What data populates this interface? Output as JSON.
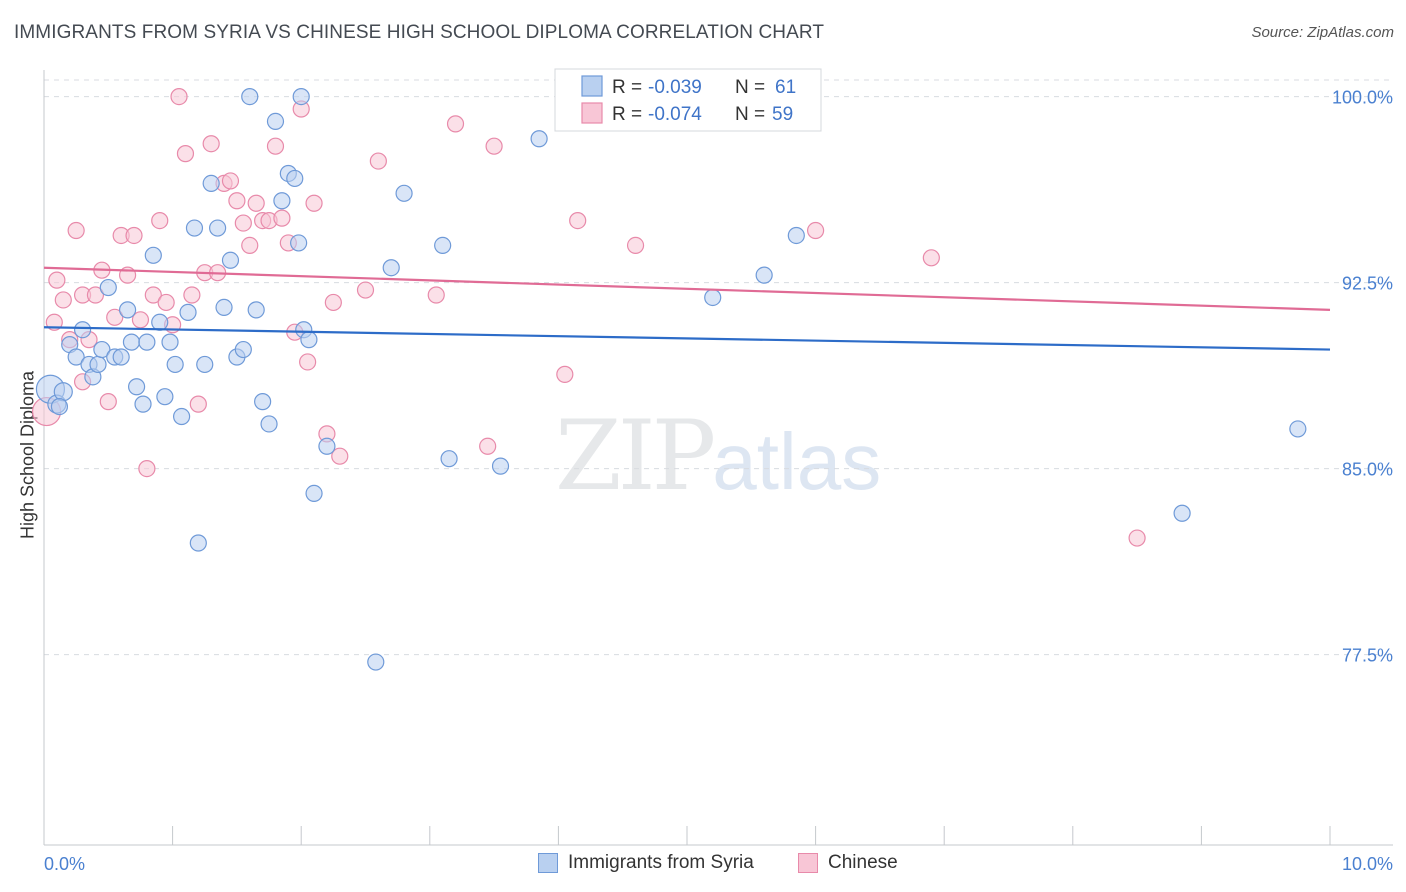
{
  "header": {
    "title": "IMMIGRANTS FROM SYRIA VS CHINESE HIGH SCHOOL DIPLOMA CORRELATION CHART",
    "source": "Source: ZipAtlas.com"
  },
  "watermark": {
    "zip": "ZIP",
    "atlas": "atlas"
  },
  "colors": {
    "blue_fill": "#b9d0f0",
    "blue_stroke": "#6f9ad8",
    "blue_line": "#2d6cc8",
    "pink_fill": "#f8c6d6",
    "pink_stroke": "#e88aaa",
    "pink_line": "#e06b95",
    "tick_text": "#4a80d0",
    "grid": "#d8dbe0"
  },
  "legend": {
    "r_label": "R =",
    "n_label": "N =",
    "rows": [
      {
        "series": "Immigrants from Syria",
        "r": "-0.039",
        "n": "61"
      },
      {
        "series": "Chinese",
        "r": "-0.074",
        "n": "59"
      }
    ]
  },
  "chart_data": {
    "type": "scatter",
    "title": "IMMIGRANTS FROM SYRIA VS CHINESE HIGH SCHOOL DIPLOMA CORRELATION CHART",
    "xlabel": "",
    "ylabel": "High School Diploma",
    "xlim": [
      0,
      10
    ],
    "ylim": [
      70.0,
      101.5
    ],
    "x_tick_labels": [
      "0.0%",
      "10.0%"
    ],
    "y_ticks": [
      77.5,
      85.0,
      92.5,
      100.0
    ],
    "y_tick_labels": [
      "77.5%",
      "85.0%",
      "92.5%",
      "100.0%"
    ],
    "grid": true,
    "legend_position": "bottom",
    "series": [
      {
        "name": "Immigrants from Syria",
        "r": -0.039,
        "n": 61,
        "trend": {
          "x": [
            0,
            10
          ],
          "y": [
            90.7,
            89.8
          ]
        },
        "points": [
          [
            0.05,
            88.2,
            14
          ],
          [
            0.1,
            87.6,
            9
          ],
          [
            0.15,
            88.1,
            9
          ],
          [
            0.2,
            90.0,
            8
          ],
          [
            0.25,
            89.5,
            8
          ],
          [
            0.3,
            90.6,
            8
          ],
          [
            0.35,
            89.2,
            8
          ],
          [
            0.38,
            88.7,
            8
          ],
          [
            0.42,
            89.2,
            8
          ],
          [
            0.45,
            89.8,
            8
          ],
          [
            0.5,
            92.3,
            8
          ],
          [
            0.55,
            89.5,
            8
          ],
          [
            0.6,
            89.5,
            8
          ],
          [
            0.65,
            91.4,
            8
          ],
          [
            0.68,
            90.1,
            8
          ],
          [
            0.72,
            88.3,
            8
          ],
          [
            0.77,
            87.6,
            8
          ],
          [
            0.8,
            90.1,
            8
          ],
          [
            0.85,
            93.6,
            8
          ],
          [
            0.9,
            90.9,
            8
          ],
          [
            0.94,
            87.9,
            8
          ],
          [
            0.98,
            90.1,
            8
          ],
          [
            1.02,
            89.2,
            8
          ],
          [
            1.07,
            87.1,
            8
          ],
          [
            1.12,
            91.3,
            8
          ],
          [
            1.17,
            94.7,
            8
          ],
          [
            1.2,
            82.0,
            8
          ],
          [
            1.25,
            89.2,
            8
          ],
          [
            1.3,
            96.5,
            8
          ],
          [
            1.35,
            94.7,
            8
          ],
          [
            1.4,
            91.5,
            8
          ],
          [
            1.45,
            93.4,
            8
          ],
          [
            1.5,
            89.5,
            8
          ],
          [
            1.55,
            89.8,
            8
          ],
          [
            1.6,
            100.0,
            8
          ],
          [
            1.65,
            91.4,
            8
          ],
          [
            1.7,
            87.7,
            8
          ],
          [
            1.75,
            86.8,
            8
          ],
          [
            1.8,
            99.0,
            8
          ],
          [
            1.85,
            95.8,
            8
          ],
          [
            1.9,
            96.9,
            8
          ],
          [
            1.95,
            96.7,
            8
          ],
          [
            1.98,
            94.1,
            8
          ],
          [
            2.02,
            90.6,
            8
          ],
          [
            2.06,
            90.2,
            8
          ],
          [
            2.0,
            100.0,
            8
          ],
          [
            2.1,
            84.0,
            8
          ],
          [
            2.2,
            85.9,
            8
          ],
          [
            2.58,
            77.2,
            8
          ],
          [
            2.7,
            93.1,
            8
          ],
          [
            2.8,
            96.1,
            8
          ],
          [
            3.1,
            94.0,
            8
          ],
          [
            3.15,
            85.4,
            8
          ],
          [
            3.55,
            85.1,
            8
          ],
          [
            3.85,
            98.3,
            8
          ],
          [
            5.2,
            91.9,
            8
          ],
          [
            5.6,
            92.8,
            8
          ],
          [
            5.85,
            94.4,
            8
          ],
          [
            8.85,
            83.2,
            8
          ],
          [
            9.75,
            86.6,
            8
          ],
          [
            0.12,
            87.5,
            8
          ]
        ]
      },
      {
        "name": "Chinese",
        "r": -0.074,
        "n": 59,
        "trend": {
          "x": [
            0,
            10
          ],
          "y": [
            93.1,
            91.4
          ]
        },
        "points": [
          [
            0.02,
            87.3,
            14
          ],
          [
            0.08,
            90.9,
            8
          ],
          [
            0.1,
            92.6,
            8
          ],
          [
            0.15,
            91.8,
            8
          ],
          [
            0.2,
            90.2,
            8
          ],
          [
            0.25,
            94.6,
            8
          ],
          [
            0.3,
            92.0,
            8
          ],
          [
            0.35,
            90.2,
            8
          ],
          [
            0.4,
            92.0,
            8
          ],
          [
            0.45,
            93.0,
            8
          ],
          [
            0.5,
            87.7,
            8
          ],
          [
            0.55,
            91.1,
            8
          ],
          [
            0.6,
            94.4,
            8
          ],
          [
            0.65,
            92.8,
            8
          ],
          [
            0.7,
            94.4,
            8
          ],
          [
            0.75,
            91.0,
            8
          ],
          [
            0.8,
            85.0,
            8
          ],
          [
            0.85,
            92.0,
            8
          ],
          [
            0.9,
            95.0,
            8
          ],
          [
            0.95,
            91.7,
            8
          ],
          [
            1.0,
            90.8,
            8
          ],
          [
            1.05,
            100.0,
            8
          ],
          [
            1.1,
            97.7,
            8
          ],
          [
            1.15,
            92.0,
            8
          ],
          [
            1.2,
            87.6,
            8
          ],
          [
            1.25,
            92.9,
            8
          ],
          [
            1.3,
            98.1,
            8
          ],
          [
            1.35,
            92.9,
            8
          ],
          [
            1.4,
            96.5,
            8
          ],
          [
            1.45,
            96.6,
            8
          ],
          [
            1.5,
            95.8,
            8
          ],
          [
            1.55,
            94.9,
            8
          ],
          [
            1.6,
            94.0,
            8
          ],
          [
            1.65,
            95.7,
            8
          ],
          [
            1.7,
            95.0,
            8
          ],
          [
            1.75,
            95.0,
            8
          ],
          [
            1.8,
            98.0,
            8
          ],
          [
            1.85,
            95.1,
            8
          ],
          [
            1.9,
            94.1,
            8
          ],
          [
            1.95,
            90.5,
            8
          ],
          [
            2.0,
            99.5,
            8
          ],
          [
            2.05,
            89.3,
            8
          ],
          [
            2.1,
            95.7,
            8
          ],
          [
            2.2,
            86.4,
            8
          ],
          [
            2.3,
            85.5,
            8
          ],
          [
            2.25,
            91.7,
            8
          ],
          [
            2.5,
            92.2,
            8
          ],
          [
            2.6,
            97.4,
            8
          ],
          [
            3.05,
            92.0,
            8
          ],
          [
            3.2,
            98.9,
            8
          ],
          [
            3.45,
            85.9,
            8
          ],
          [
            3.5,
            98.0,
            8
          ],
          [
            4.05,
            88.8,
            8
          ],
          [
            4.15,
            95.0,
            8
          ],
          [
            4.6,
            94.0,
            8
          ],
          [
            6.0,
            94.6,
            8
          ],
          [
            6.9,
            93.5,
            8
          ],
          [
            8.5,
            82.2,
            8
          ],
          [
            0.3,
            88.5,
            8
          ]
        ]
      }
    ]
  }
}
